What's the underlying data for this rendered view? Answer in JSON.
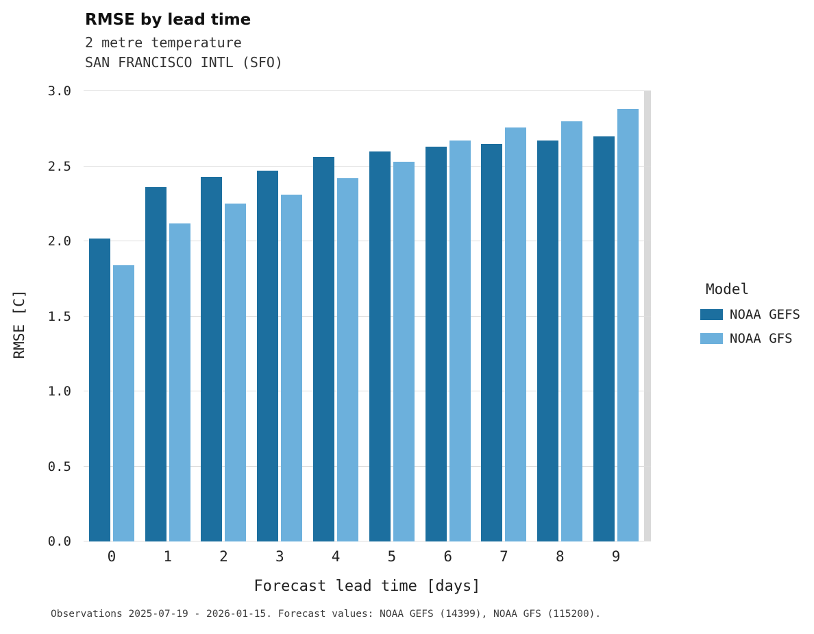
{
  "chart_data": {
    "type": "bar",
    "title": "RMSE by lead time",
    "subtitle_line1": "2 metre temperature",
    "subtitle_line2": "SAN FRANCISCO INTL (SFO)",
    "xlabel": "Forecast lead time [days]",
    "ylabel": "RMSE [C]",
    "categories": [
      "0",
      "1",
      "2",
      "3",
      "4",
      "5",
      "6",
      "7",
      "8",
      "9"
    ],
    "series": [
      {
        "name": "NOAA GEFS",
        "color": "#1c6f9f",
        "values": [
          2.02,
          2.36,
          2.43,
          2.47,
          2.56,
          2.6,
          2.63,
          2.65,
          2.67,
          2.7
        ]
      },
      {
        "name": "NOAA GFS",
        "color": "#6cb0dc",
        "values": [
          1.84,
          2.12,
          2.25,
          2.31,
          2.42,
          2.53,
          2.67,
          2.76,
          2.8,
          2.88
        ]
      }
    ],
    "ylim": [
      0,
      3.0
    ],
    "ytick_labels": [
      "0.0",
      "0.5",
      "1.0",
      "1.5",
      "2.0",
      "2.5",
      "3.0"
    ],
    "grid": "horizontal",
    "legend_title": "Model",
    "legend_position": "right",
    "footer": "Observations 2025-07-19 - 2026-01-15. Forecast values: NOAA GEFS (14399), NOAA GFS (115200)."
  }
}
